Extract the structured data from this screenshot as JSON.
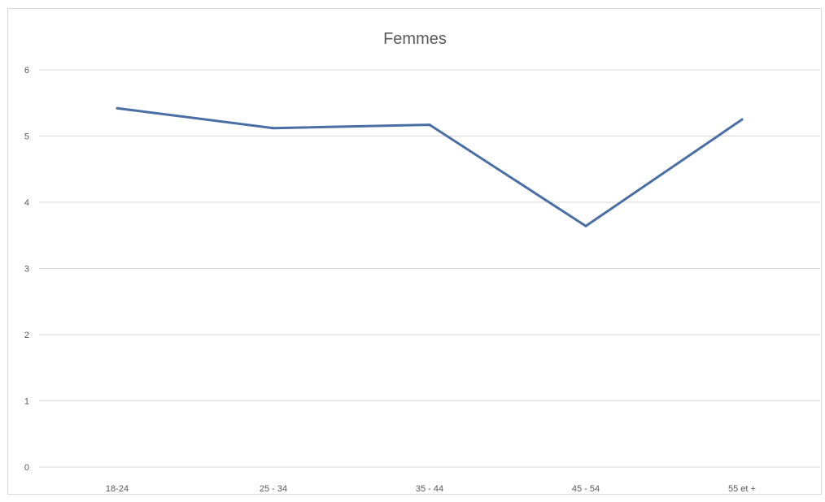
{
  "chart_data": {
    "type": "line",
    "title": "Femmes",
    "xlabel": "",
    "ylabel": "",
    "categories": [
      "18-24",
      "25 - 34",
      "35 - 44",
      "45 - 54",
      "55 et +"
    ],
    "series": [
      {
        "values": [
          5.42,
          5.12,
          5.17,
          3.64,
          5.25
        ]
      }
    ],
    "ylim": [
      0,
      6
    ],
    "yticks": [
      "0",
      "1",
      "2",
      "3",
      "4",
      "5",
      "6"
    ],
    "grid": true,
    "legend": "none",
    "colors": {
      "line": "#4a6fa5",
      "grid": "#d9d9d9",
      "text": "#595959",
      "frame": "#d9d9d9"
    }
  }
}
